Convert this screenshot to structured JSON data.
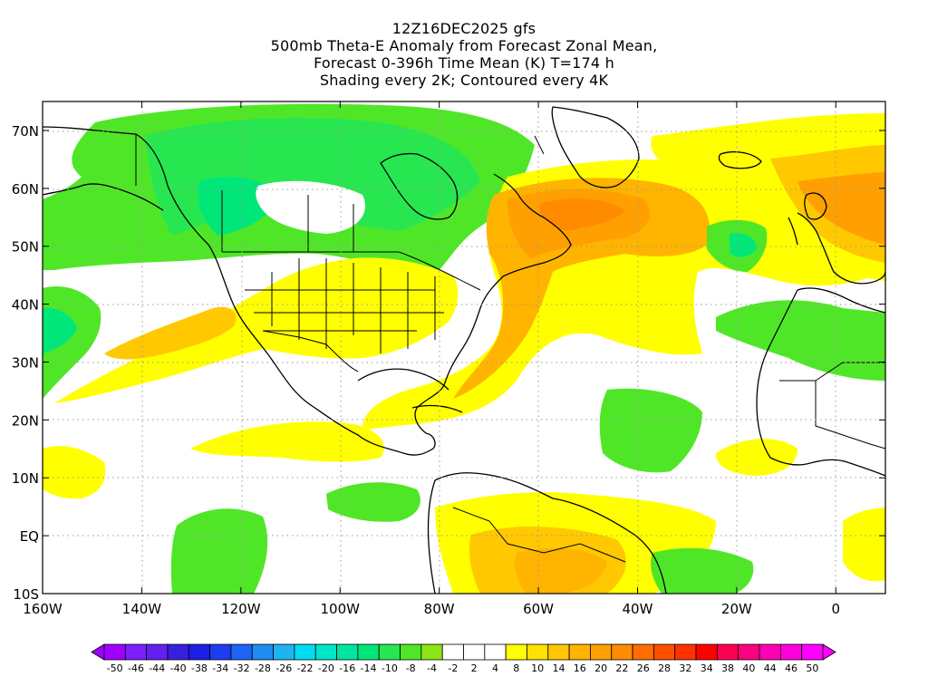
{
  "title": {
    "line1": "12Z16DEC2025 gfs",
    "line2": "500mb Theta-E Anomaly from Forecast Zonal Mean,",
    "line3": "Forecast 0-396h Time Mean (K) T=174 h",
    "line4": "Shading every 2K; Contoured every 4K"
  },
  "map": {
    "lon_range": [
      -160,
      10
    ],
    "lat_range": [
      -10,
      75
    ],
    "x_tick_labels": [
      "160W",
      "140W",
      "120W",
      "100W",
      "80W",
      "60W",
      "40W",
      "20W",
      "0"
    ],
    "x_tick_lons": [
      -160,
      -140,
      -120,
      -100,
      -80,
      -60,
      -40,
      -20,
      0
    ],
    "y_tick_labels": [
      "70N",
      "60N",
      "50N",
      "40N",
      "30N",
      "20N",
      "10N",
      "EQ",
      "10S"
    ],
    "y_tick_lats": [
      70,
      60,
      50,
      40,
      30,
      20,
      10,
      0,
      -10
    ]
  },
  "colorbar": {
    "labels": [
      "-50",
      "-46",
      "-44",
      "-40",
      "-38",
      "-34",
      "-32",
      "-28",
      "-26",
      "-22",
      "-20",
      "-16",
      "-14",
      "-10",
      "-8",
      "-4",
      "-2",
      "2",
      "4",
      "8",
      "10",
      "14",
      "16",
      "20",
      "22",
      "26",
      "28",
      "32",
      "34",
      "38",
      "40",
      "44",
      "46",
      "50"
    ],
    "colors": [
      "#a000ff",
      "#7b1fff",
      "#6420f0",
      "#3a1ee0",
      "#1e1ee6",
      "#1e3cf0",
      "#1e64f5",
      "#1e8cf0",
      "#1eb4f0",
      "#00dcf0",
      "#00e6c8",
      "#00e6a0",
      "#00e678",
      "#28e650",
      "#50e628",
      "#8ce614",
      "#ffffff",
      "#ffffff",
      "#ffffff",
      "#ffff00",
      "#ffe100",
      "#ffc800",
      "#ffb400",
      "#ffa000",
      "#ff8c00",
      "#ff6e00",
      "#ff5000",
      "#ff3200",
      "#ff0000",
      "#ff0050",
      "#ff0080",
      "#ff00b4",
      "#ff00dc",
      "#ff00ff"
    ]
  }
}
